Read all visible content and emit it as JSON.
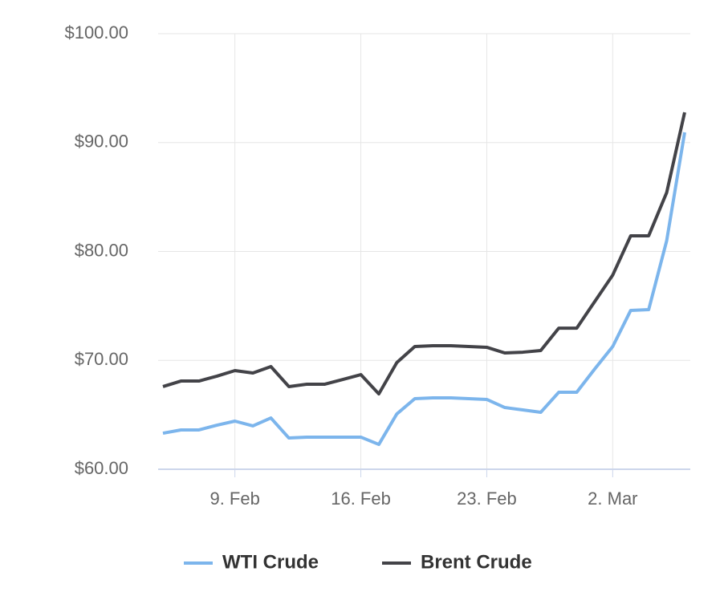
{
  "chart_data": {
    "type": "line",
    "categories": [
      null,
      null,
      null,
      null,
      "9. Feb",
      null,
      null,
      null,
      null,
      null,
      null,
      "16. Feb",
      null,
      null,
      null,
      null,
      null,
      null,
      "23. Feb",
      null,
      null,
      null,
      null,
      null,
      null,
      "2. Mar",
      null,
      null,
      null,
      null
    ],
    "series": [
      {
        "name": "WTI Crude",
        "color": "#7cb5ec",
        "values": [
          63.31,
          63.61,
          63.61,
          64.05,
          64.42,
          63.98,
          64.71,
          62.87,
          62.95,
          62.95,
          62.95,
          62.95,
          62.28,
          65.08,
          66.48,
          66.56,
          66.56,
          66.48,
          66.41,
          65.67,
          65.45,
          65.23,
          67.07,
          67.07,
          69.21,
          71.27,
          74.59,
          74.66,
          80.99,
          90.94
        ]
      },
      {
        "name": "Brent Crude",
        "color": "#434348",
        "values": [
          67.59,
          68.1,
          68.1,
          68.55,
          69.06,
          68.84,
          69.43,
          67.59,
          67.81,
          67.81,
          68.25,
          68.69,
          66.92,
          69.8,
          71.27,
          71.34,
          71.34,
          71.27,
          71.2,
          70.68,
          70.75,
          70.9,
          72.96,
          72.96,
          75.4,
          77.83,
          81.44,
          81.44,
          85.41,
          92.78
        ]
      }
    ],
    "ylim": [
      60,
      100
    ],
    "yticks": [
      {
        "value": 60,
        "label": "$60.00"
      },
      {
        "value": 70,
        "label": "$70.00"
      },
      {
        "value": 80,
        "label": "$80.00"
      },
      {
        "value": 90,
        "label": "$90.00"
      },
      {
        "value": 100,
        "label": "$100.00"
      }
    ],
    "grid": true,
    "legend": "bottom"
  }
}
